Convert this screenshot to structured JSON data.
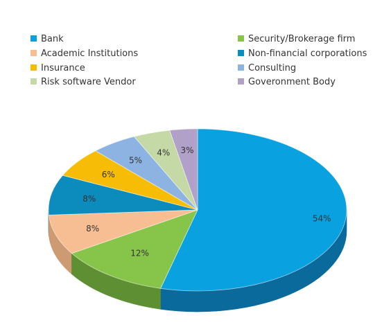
{
  "chart_data": {
    "type": "pie",
    "title": "",
    "legend_position": "top",
    "categories": [
      "Bank",
      "Security/Brokerage firm",
      "Academic Institutions",
      "Non-financial corporations",
      "Insurance",
      "Consulting",
      "Risk software Vendor",
      "Goveronment Body"
    ],
    "values": [
      54,
      12,
      8,
      8,
      6,
      5,
      4,
      3
    ],
    "data_labels": [
      "54%",
      "12%",
      "8%",
      "8%",
      "6%",
      "5%",
      "4%",
      "3%"
    ],
    "colors": [
      "#0AA1E0",
      "#86C44A",
      "#F7BE94",
      "#0C8CBD",
      "#F7BD06",
      "#8DB3E2",
      "#C5D9A6",
      "#B1A0C7"
    ],
    "side_colors": [
      "#0B6A9C",
      "#5E8F33",
      "#CC9A73",
      "#0A6385",
      "#BE9104",
      "#6A8BB3",
      "#9CB07E",
      "#8A7A9E"
    ]
  }
}
